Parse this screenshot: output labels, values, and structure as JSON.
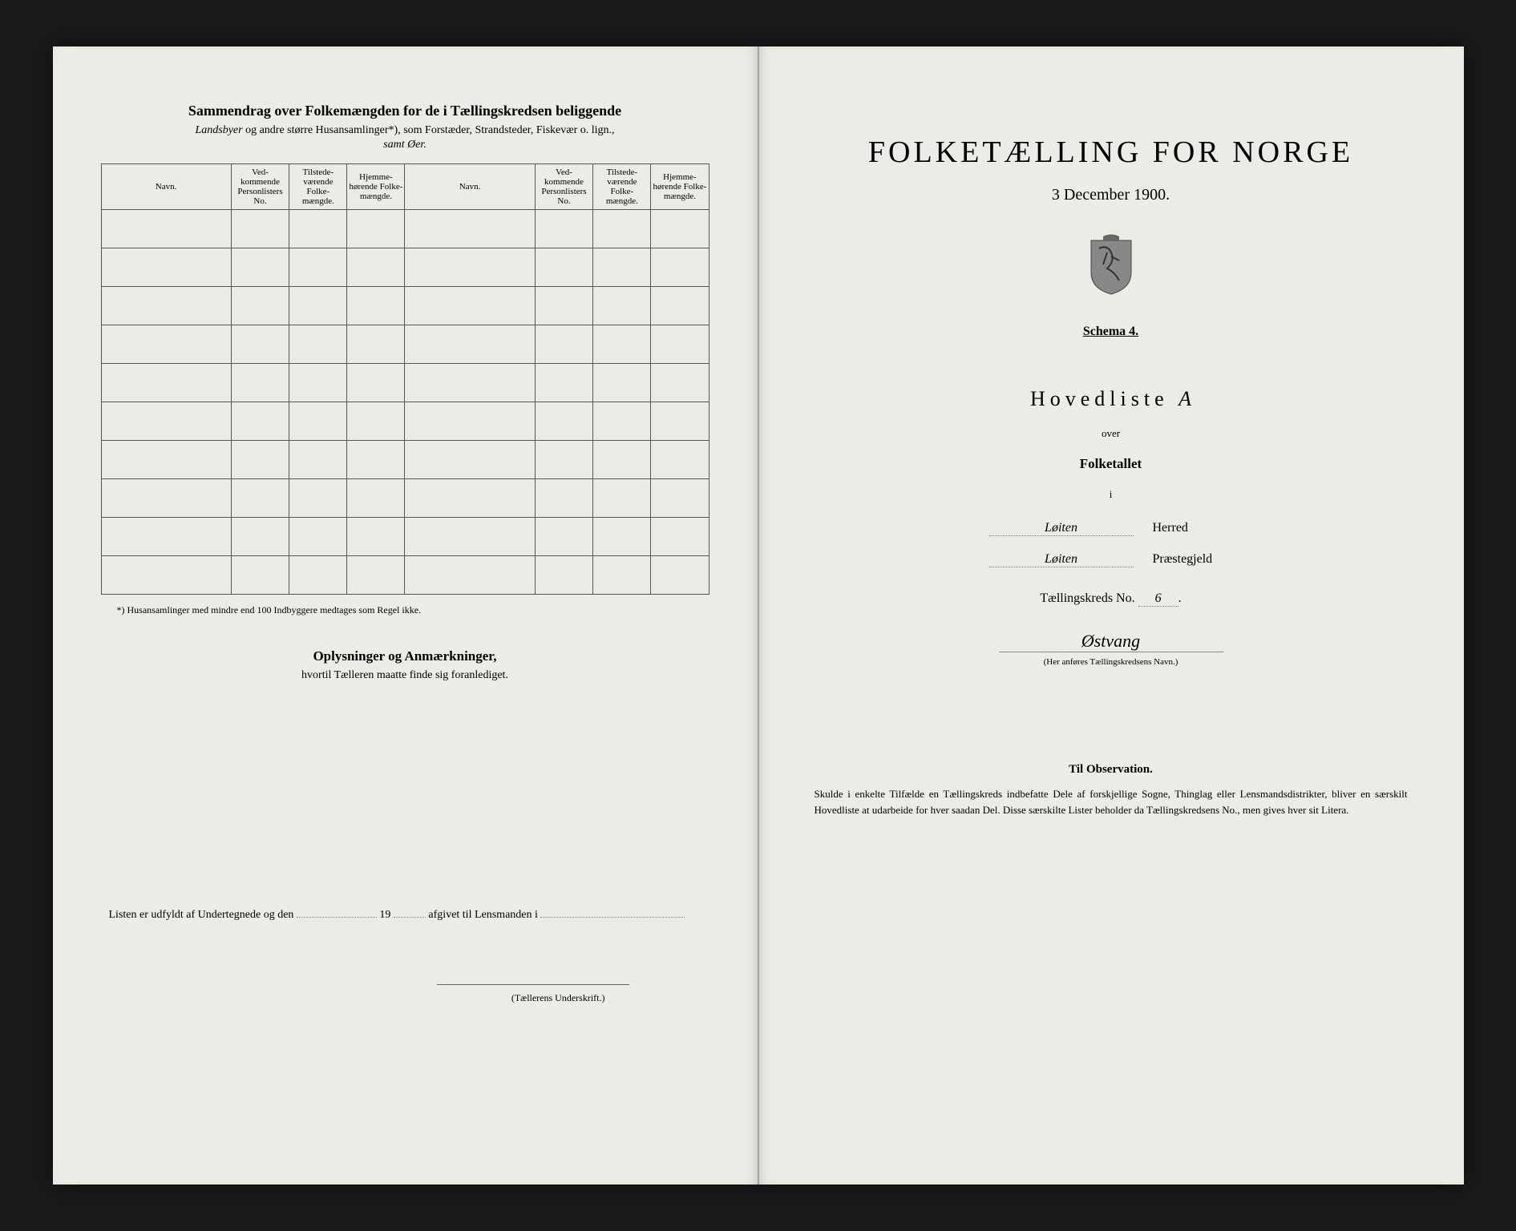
{
  "left": {
    "title": "Sammendrag over Folkemængden for de i Tællingskredsen beliggende",
    "subtitle_part1": "Landsbyer",
    "subtitle_part2": " og andre større Husansamlinger*), som Forstæder, Strandsteder, Fiskevær o. lign.,",
    "subtitle_line2": "samt Øer.",
    "columns": {
      "navn": "Navn.",
      "vedkommende": "Ved-kommende Personlisters No.",
      "tilstede": "Tilstede-værende Folke-mængde.",
      "hjemme": "Hjemme-hørende Folke-mængde."
    },
    "footnote": "*) Husansamlinger med mindre end 100 Indbyggere medtages som Regel ikke.",
    "oplysninger_heading": "Oplysninger og Anmærkninger,",
    "oplysninger_sub": "hvortil Tælleren maatte finde sig foranlediget.",
    "listen_line_1": "Listen er udfyldt af Undertegnede og den",
    "listen_line_year": "19",
    "listen_line_2": "afgivet til Lensmanden i",
    "signature_caption": "(Tællerens Underskrift.)"
  },
  "right": {
    "main_title": "FOLKETÆLLING FOR NORGE",
    "date": "3 December 1900.",
    "schema": "Schema 4.",
    "hovedliste": "Hovedliste",
    "hovedliste_letter": "A",
    "over": "over",
    "folketallet": "Folketallet",
    "i": "i",
    "herred_value": "Løiten",
    "herred_label": "Herred",
    "praestegjeld_value": "Løiten",
    "praestegjeld_label": "Præstegjeld",
    "kreds_label": "Tællingskreds No.",
    "kreds_value": "6",
    "place_name": "Østvang",
    "place_caption": "(Her anføres Tællingskredsens Navn.)",
    "obs_heading": "Til Observation.",
    "obs_text": "Skulde i enkelte Tilfælde en Tællingskreds indbefatte Dele af forskjellige Sogne, Thinglag eller Lensmandsdistrikter, bliver en særskilt Hovedliste at udarbeide for hver saadan Del. Disse særskilte Lister beholder da Tællingskredsens No., men gives hver sit Litera."
  },
  "table_rows": 10,
  "colors": {
    "paper": "#edebe5",
    "background": "#1a1a1a",
    "ink": "#2a2a2a",
    "border": "#555555"
  }
}
